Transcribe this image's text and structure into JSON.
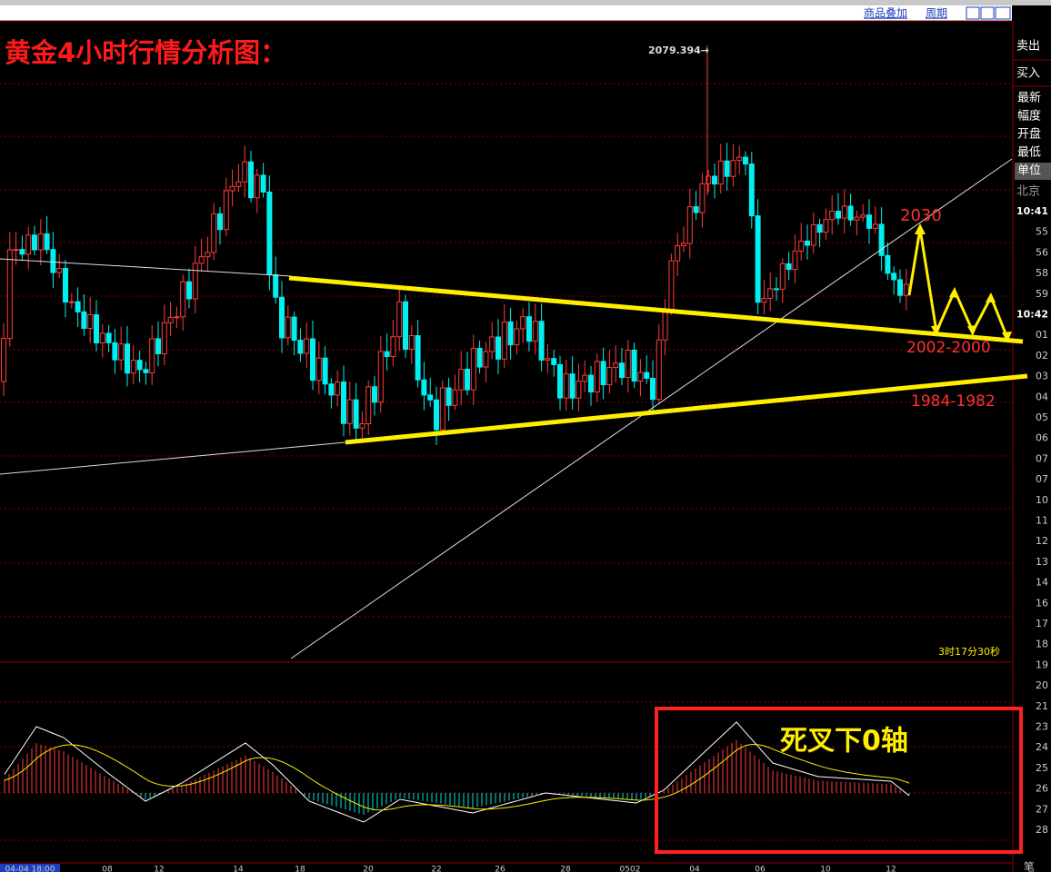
{
  "toolbar": {
    "overlay": "商品叠加",
    "period": "周期"
  },
  "title": "黄金4小时行情分析图：",
  "annotations": {
    "peak": "2079.394→",
    "target": "2030",
    "support_1": "2002-2000",
    "support_2": "1984-1982",
    "macd_note": "死叉下0轴",
    "timer": "3时17分30秒"
  },
  "x_labels": [
    "04-04 18:00",
    "08",
    "12",
    "14",
    "18",
    "20",
    "22",
    "26",
    "28",
    "0502",
    "04",
    "06",
    "10",
    "12"
  ],
  "quote_panel": {
    "sell": "卖出",
    "buy": "买入",
    "fields": [
      "最新",
      "幅度",
      "开盘",
      "最低",
      "单位"
    ],
    "region": "北京",
    "times": [
      "10:41",
      "55",
      "56",
      "58",
      "59",
      "10:42",
      "01",
      "02",
      "03",
      "04",
      "05",
      "06",
      "07",
      "07",
      "10",
      "11",
      "12",
      "13",
      "14",
      "16",
      "17",
      "18",
      "19",
      "20",
      "21",
      "23",
      "24",
      "25",
      "26",
      "27",
      "28"
    ]
  },
  "footer": "笔"
}
